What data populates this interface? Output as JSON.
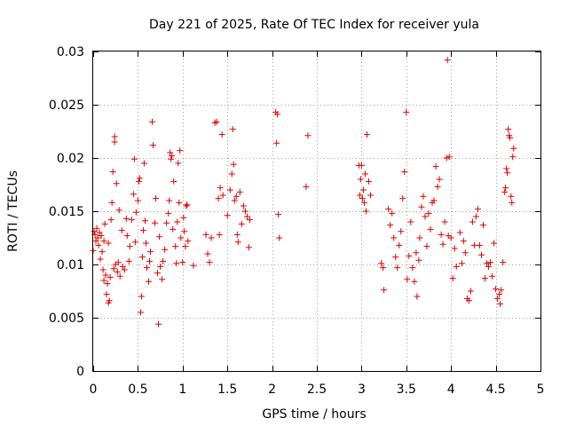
{
  "chart_data": {
    "type": "scatter",
    "title": "Day 221 of 2025, Rate Of TEC Index for receiver yula",
    "xlabel": "GPS time / hours",
    "ylabel": "ROTI / TECUs",
    "xlim": [
      0,
      5
    ],
    "ylim": [
      0,
      0.03
    ],
    "xticks": [
      0,
      0.5,
      1,
      1.5,
      2,
      2.5,
      3,
      3.5,
      4,
      4.5,
      5
    ],
    "xtick_labels": [
      "0",
      "0.5",
      "1",
      "1.5",
      "2",
      "2.5",
      "3",
      "3.5",
      "4",
      "4.5",
      "5"
    ],
    "yticks": [
      0,
      0.005,
      0.01,
      0.015,
      0.02,
      0.025,
      0.03
    ],
    "ytick_labels": [
      "0",
      "0.005",
      "0.01",
      "0.015",
      "0.02",
      "0.025",
      "0.03"
    ],
    "grid": true,
    "marker": "+",
    "series": [
      {
        "name": "ROTI",
        "color": "#dd0000",
        "points": [
          [
            0.0,
            0.0113
          ],
          [
            0.01,
            0.0131
          ],
          [
            0.02,
            0.0128
          ],
          [
            0.03,
            0.0122
          ],
          [
            0.04,
            0.0134
          ],
          [
            0.05,
            0.0125
          ],
          [
            0.06,
            0.0118
          ],
          [
            0.07,
            0.013
          ],
          [
            0.08,
            0.0105
          ],
          [
            0.09,
            0.0127
          ],
          [
            0.1,
            0.0112
          ],
          [
            0.11,
            0.0095
          ],
          [
            0.12,
            0.0122
          ],
          [
            0.12,
            0.0085
          ],
          [
            0.13,
            0.0138
          ],
          [
            0.14,
            0.009
          ],
          [
            0.15,
            0.0072
          ],
          [
            0.16,
            0.0082
          ],
          [
            0.17,
            0.0064
          ],
          [
            0.17,
            0.012
          ],
          [
            0.18,
            0.0066
          ],
          [
            0.19,
            0.0088
          ],
          [
            0.2,
            0.0142
          ],
          [
            0.21,
            0.0158
          ],
          [
            0.22,
            0.0187
          ],
          [
            0.23,
            0.0096
          ],
          [
            0.24,
            0.0215
          ],
          [
            0.24,
            0.022
          ],
          [
            0.25,
            0.01
          ],
          [
            0.26,
            0.0176
          ],
          [
            0.27,
            0.0093
          ],
          [
            0.28,
            0.0102
          ],
          [
            0.29,
            0.0151
          ],
          [
            0.3,
            0.0089
          ],
          [
            0.32,
            0.0132
          ],
          [
            0.33,
            0.0098
          ],
          [
            0.35,
            0.0095
          ],
          [
            0.37,
            0.0143
          ],
          [
            0.38,
            0.0127
          ],
          [
            0.4,
            0.0103
          ],
          [
            0.41,
            0.0117
          ],
          [
            0.43,
            0.0142
          ],
          [
            0.45,
            0.0166
          ],
          [
            0.46,
            0.0199
          ],
          [
            0.47,
            0.0121
          ],
          [
            0.48,
            0.0149
          ],
          [
            0.5,
            0.016
          ],
          [
            0.51,
            0.0178
          ],
          [
            0.52,
            0.0181
          ],
          [
            0.53,
            0.0055
          ],
          [
            0.54,
            0.007
          ],
          [
            0.55,
            0.0107
          ],
          [
            0.56,
            0.0132
          ],
          [
            0.57,
            0.0195
          ],
          [
            0.58,
            0.0141
          ],
          [
            0.59,
            0.012
          ],
          [
            0.6,
            0.0097
          ],
          [
            0.62,
            0.0084
          ],
          [
            0.63,
            0.0103
          ],
          [
            0.64,
            0.0112
          ],
          [
            0.66,
            0.0234
          ],
          [
            0.67,
            0.0212
          ],
          [
            0.69,
            0.0139
          ],
          [
            0.7,
            0.0162
          ],
          [
            0.72,
            0.0092
          ],
          [
            0.73,
            0.0044
          ],
          [
            0.74,
            0.0126
          ],
          [
            0.75,
            0.0098
          ],
          [
            0.77,
            0.0086
          ],
          [
            0.78,
            0.0103
          ],
          [
            0.8,
            0.0114
          ],
          [
            0.82,
            0.0139
          ],
          [
            0.84,
            0.0148
          ],
          [
            0.85,
            0.016
          ],
          [
            0.86,
            0.0205
          ],
          [
            0.87,
            0.0199
          ],
          [
            0.88,
            0.0202
          ],
          [
            0.89,
            0.0133
          ],
          [
            0.9,
            0.0178
          ],
          [
            0.92,
            0.0117
          ],
          [
            0.93,
            0.0101
          ],
          [
            0.94,
            0.014
          ],
          [
            0.95,
            0.0195
          ],
          [
            0.96,
            0.0158
          ],
          [
            0.97,
            0.0207
          ],
          [
            0.98,
            0.0125
          ],
          [
            1.0,
            0.0102
          ],
          [
            1.01,
            0.0144
          ],
          [
            1.02,
            0.0131
          ],
          [
            1.03,
            0.0117
          ],
          [
            1.04,
            0.0155
          ],
          [
            1.05,
            0.0156
          ],
          [
            1.06,
            0.0122
          ],
          [
            1.12,
            0.0099
          ],
          [
            1.26,
            0.0128
          ],
          [
            1.28,
            0.011
          ],
          [
            1.3,
            0.0102
          ],
          [
            1.32,
            0.0125
          ],
          [
            1.36,
            0.0233
          ],
          [
            1.38,
            0.0234
          ],
          [
            1.4,
            0.0162
          ],
          [
            1.41,
            0.0128
          ],
          [
            1.42,
            0.0172
          ],
          [
            1.44,
            0.0222
          ],
          [
            1.45,
            0.0165
          ],
          [
            1.5,
            0.0146
          ],
          [
            1.53,
            0.017
          ],
          [
            1.55,
            0.0185
          ],
          [
            1.56,
            0.0227
          ],
          [
            1.57,
            0.0194
          ],
          [
            1.58,
            0.016
          ],
          [
            1.6,
            0.0164
          ],
          [
            1.61,
            0.0128
          ],
          [
            1.62,
            0.0121
          ],
          [
            1.64,
            0.0168
          ],
          [
            1.66,
            0.0138
          ],
          [
            1.68,
            0.0155
          ],
          [
            1.7,
            0.015
          ],
          [
            1.72,
            0.0145
          ],
          [
            1.74,
            0.0116
          ],
          [
            1.75,
            0.0142
          ],
          [
            2.04,
            0.0243
          ],
          [
            2.05,
            0.0214
          ],
          [
            2.06,
            0.0241
          ],
          [
            2.07,
            0.0147
          ],
          [
            2.08,
            0.0125
          ],
          [
            2.38,
            0.0173
          ],
          [
            2.4,
            0.0221
          ],
          [
            2.97,
            0.0193
          ],
          [
            2.98,
            0.0165
          ],
          [
            2.99,
            0.018
          ],
          [
            3.0,
            0.0193
          ],
          [
            3.01,
            0.0162
          ],
          [
            3.02,
            0.017
          ],
          [
            3.03,
            0.0158
          ],
          [
            3.04,
            0.0185
          ],
          [
            3.05,
            0.015
          ],
          [
            3.06,
            0.0222
          ],
          [
            3.08,
            0.0178
          ],
          [
            3.1,
            0.0165
          ],
          [
            3.22,
            0.0101
          ],
          [
            3.24,
            0.0097
          ],
          [
            3.25,
            0.0076
          ],
          [
            3.3,
            0.0152
          ],
          [
            3.32,
            0.0137
          ],
          [
            3.34,
            0.0148
          ],
          [
            3.36,
            0.0125
          ],
          [
            3.38,
            0.0107
          ],
          [
            3.4,
            0.0097
          ],
          [
            3.42,
            0.0118
          ],
          [
            3.44,
            0.0131
          ],
          [
            3.46,
            0.0162
          ],
          [
            3.48,
            0.0187
          ],
          [
            3.5,
            0.0243
          ],
          [
            3.51,
            0.0086
          ],
          [
            3.53,
            0.0108
          ],
          [
            3.55,
            0.014
          ],
          [
            3.57,
            0.0097
          ],
          [
            3.59,
            0.0084
          ],
          [
            3.61,
            0.0111
          ],
          [
            3.62,
            0.007
          ],
          [
            3.64,
            0.0104
          ],
          [
            3.65,
            0.0125
          ],
          [
            3.67,
            0.0154
          ],
          [
            3.69,
            0.0164
          ],
          [
            3.71,
            0.0145
          ],
          [
            3.73,
            0.0117
          ],
          [
            3.75,
            0.0148
          ],
          [
            3.77,
            0.0133
          ],
          [
            3.79,
            0.0158
          ],
          [
            3.81,
            0.016
          ],
          [
            3.83,
            0.0192
          ],
          [
            3.85,
            0.0173
          ],
          [
            3.87,
            0.018
          ],
          [
            3.89,
            0.0128
          ],
          [
            3.91,
            0.0119
          ],
          [
            3.93,
            0.014
          ],
          [
            3.95,
            0.02
          ],
          [
            3.96,
            0.0292
          ],
          [
            3.97,
            0.0127
          ],
          [
            3.98,
            0.0201
          ],
          [
            4.0,
            0.0125
          ],
          [
            4.02,
            0.0087
          ],
          [
            4.04,
            0.0115
          ],
          [
            4.06,
            0.0098
          ],
          [
            4.1,
            0.013
          ],
          [
            4.12,
            0.0101
          ],
          [
            4.14,
            0.0122
          ],
          [
            4.16,
            0.0111
          ],
          [
            4.18,
            0.0068
          ],
          [
            4.2,
            0.0066
          ],
          [
            4.22,
            0.0075
          ],
          [
            4.24,
            0.014
          ],
          [
            4.26,
            0.0118
          ],
          [
            4.28,
            0.0145
          ],
          [
            4.3,
            0.0152
          ],
          [
            4.32,
            0.0118
          ],
          [
            4.34,
            0.0109
          ],
          [
            4.36,
            0.0137
          ],
          [
            4.38,
            0.0087
          ],
          [
            4.4,
            0.0101
          ],
          [
            4.42,
            0.0098
          ],
          [
            4.44,
            0.0102
          ],
          [
            4.46,
            0.0089
          ],
          [
            4.48,
            0.012
          ],
          [
            4.5,
            0.0077
          ],
          [
            4.52,
            0.0068
          ],
          [
            4.54,
            0.0072
          ],
          [
            4.55,
            0.0063
          ],
          [
            4.56,
            0.0076
          ],
          [
            4.58,
            0.0102
          ],
          [
            4.6,
            0.0168
          ],
          [
            4.61,
            0.0172
          ],
          [
            4.62,
            0.019
          ],
          [
            4.63,
            0.0186
          ],
          [
            4.64,
            0.0227
          ],
          [
            4.65,
            0.0221
          ],
          [
            4.66,
            0.0219
          ],
          [
            4.67,
            0.0164
          ],
          [
            4.68,
            0.0158
          ],
          [
            4.69,
            0.0201
          ],
          [
            4.7,
            0.0209
          ]
        ]
      }
    ]
  }
}
